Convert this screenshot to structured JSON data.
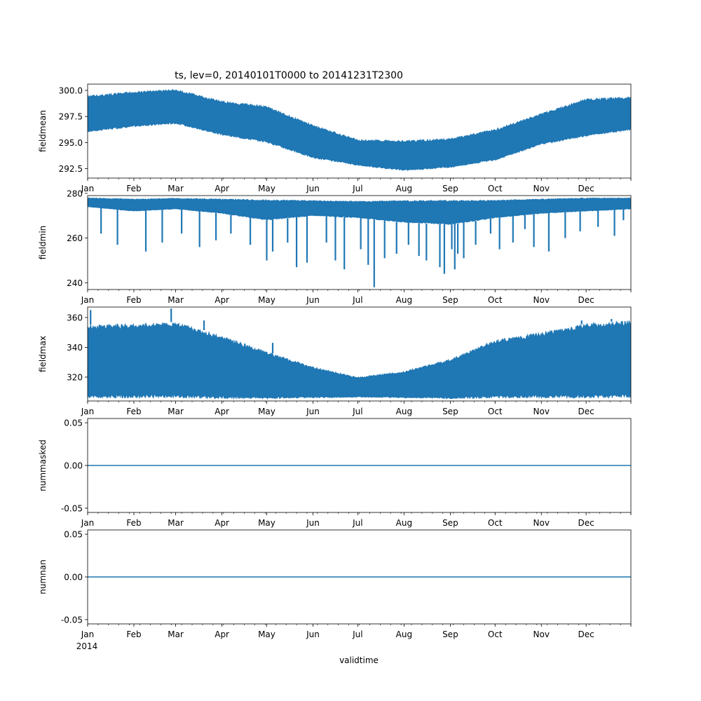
{
  "figure": {
    "title": "ts, lev=0, 20140101T0000 to 20141231T2300",
    "xlabel": "validtime",
    "year_label": "2014",
    "line_color": "#1f77b4"
  },
  "chart_data": [
    {
      "type": "area",
      "name": "fieldmean",
      "ylabel": "fieldmean",
      "x_ticks": [
        "Jan",
        "Feb",
        "Mar",
        "Apr",
        "May",
        "Jun",
        "Jul",
        "Aug",
        "Sep",
        "Oct",
        "Nov",
        "Dec"
      ],
      "yticks": [
        292.5,
        295.0,
        297.5,
        300.0
      ],
      "ytick_labels": [
        "292.5",
        "295.0",
        "297.5",
        "300.0"
      ],
      "ylim": [
        291.6,
        300.6
      ],
      "x_dates": [
        "2014-01-01",
        "2014-02-01",
        "2014-03-01",
        "2014-04-01",
        "2014-05-01",
        "2014-06-01",
        "2014-07-01",
        "2014-08-01",
        "2014-09-01",
        "2014-10-01",
        "2014-11-01",
        "2014-12-01",
        "2014-12-31"
      ],
      "upper": [
        299.5,
        299.9,
        300.1,
        299.0,
        298.5,
        296.7,
        295.3,
        295.2,
        295.4,
        296.3,
        297.8,
        299.2,
        299.4
      ],
      "lower": [
        296.0,
        296.5,
        296.8,
        295.7,
        295.0,
        293.5,
        292.8,
        292.3,
        292.6,
        293.3,
        294.8,
        295.6,
        296.2
      ],
      "xlim": [
        "2014-01-01",
        "2014-12-31"
      ],
      "grid": false
    },
    {
      "type": "line",
      "name": "fieldmin",
      "ylabel": "fieldmin",
      "x_ticks": [
        "Jan",
        "Feb",
        "Mar",
        "Apr",
        "May",
        "Jun",
        "Jul",
        "Aug",
        "Sep",
        "Oct",
        "Nov",
        "Dec"
      ],
      "yticks": [
        240,
        260,
        280
      ],
      "ytick_labels": [
        "240",
        "260",
        "280"
      ],
      "ylim": [
        237,
        279
      ],
      "x_dates": [
        "2014-01-01",
        "2014-02-01",
        "2014-03-01",
        "2014-04-01",
        "2014-05-01",
        "2014-06-01",
        "2014-07-01",
        "2014-08-01",
        "2014-09-01",
        "2014-10-01",
        "2014-11-01",
        "2014-12-01",
        "2014-12-31"
      ],
      "upper": [
        278.0,
        277.5,
        277.8,
        277.5,
        277.2,
        276.8,
        276.5,
        276.8,
        277.0,
        277.0,
        277.5,
        278.0,
        278.0
      ],
      "lower": [
        274.0,
        272.0,
        273.0,
        271.0,
        268.0,
        270.0,
        269.0,
        267.0,
        266.0,
        269.0,
        271.0,
        272.0,
        273.0
      ],
      "spikes": [
        [
          "2014-01-10",
          262
        ],
        [
          "2014-01-21",
          257
        ],
        [
          "2014-02-09",
          254
        ],
        [
          "2014-02-20",
          258
        ],
        [
          "2014-03-05",
          262
        ],
        [
          "2014-03-17",
          256
        ],
        [
          "2014-03-28",
          259
        ],
        [
          "2014-04-07",
          262
        ],
        [
          "2014-04-20",
          257
        ],
        [
          "2014-05-01",
          250
        ],
        [
          "2014-05-05",
          254
        ],
        [
          "2014-05-15",
          258
        ],
        [
          "2014-05-21",
          247
        ],
        [
          "2014-05-28",
          249
        ],
        [
          "2014-06-10",
          258
        ],
        [
          "2014-06-16",
          250
        ],
        [
          "2014-06-22",
          246
        ],
        [
          "2014-07-03",
          255
        ],
        [
          "2014-07-08",
          248
        ],
        [
          "2014-07-12",
          238
        ],
        [
          "2014-07-19",
          251
        ],
        [
          "2014-07-27",
          253
        ],
        [
          "2014-08-04",
          257
        ],
        [
          "2014-08-11",
          252
        ],
        [
          "2014-08-16",
          250
        ],
        [
          "2014-08-25",
          247
        ],
        [
          "2014-08-28",
          244
        ],
        [
          "2014-09-02",
          255
        ],
        [
          "2014-09-04",
          246
        ],
        [
          "2014-09-06",
          253
        ],
        [
          "2014-09-10",
          251
        ],
        [
          "2014-09-18",
          257
        ],
        [
          "2014-09-28",
          262
        ],
        [
          "2014-10-04",
          255
        ],
        [
          "2014-10-13",
          258
        ],
        [
          "2014-10-21",
          264
        ],
        [
          "2014-10-27",
          256
        ],
        [
          "2014-11-06",
          254
        ],
        [
          "2014-11-17",
          260
        ],
        [
          "2014-11-27",
          263
        ],
        [
          "2014-12-09",
          265
        ],
        [
          "2014-12-20",
          261
        ],
        [
          "2014-12-26",
          268
        ]
      ],
      "xlim": [
        "2014-01-01",
        "2014-12-31"
      ],
      "grid": false
    },
    {
      "type": "area",
      "name": "fieldmax",
      "ylabel": "fieldmax",
      "x_ticks": [
        "Jan",
        "Feb",
        "Mar",
        "Apr",
        "May",
        "Jun",
        "Jul",
        "Aug",
        "Sep",
        "Oct",
        "Nov",
        "Dec"
      ],
      "yticks": [
        320,
        340,
        360
      ],
      "ytick_labels": [
        "320",
        "340",
        "360"
      ],
      "ylim": [
        304,
        367
      ],
      "x_dates": [
        "2014-01-01",
        "2014-02-01",
        "2014-03-01",
        "2014-04-01",
        "2014-05-01",
        "2014-06-01",
        "2014-07-01",
        "2014-08-01",
        "2014-09-01",
        "2014-10-01",
        "2014-11-01",
        "2014-12-01",
        "2014-12-31"
      ],
      "upper": [
        355.0,
        356.0,
        357.0,
        348.0,
        337.0,
        327.0,
        320.0,
        324.0,
        332.0,
        345.0,
        350.0,
        356.0,
        358.0
      ],
      "lower": [
        306.0,
        306.0,
        306.0,
        305.5,
        305.5,
        306.0,
        306.5,
        306.0,
        305.5,
        306.0,
        306.0,
        306.0,
        306.0
      ],
      "spikes": [
        [
          "2014-01-03",
          365
        ],
        [
          "2014-02-26",
          366
        ],
        [
          "2014-03-20",
          358
        ],
        [
          "2014-05-05",
          343
        ],
        [
          "2014-11-28",
          358
        ],
        [
          "2014-12-18",
          359
        ]
      ],
      "xlim": [
        "2014-01-01",
        "2014-12-31"
      ],
      "grid": false
    },
    {
      "type": "line",
      "name": "nummasked",
      "ylabel": "nummasked",
      "x_ticks": [
        "Jan",
        "Feb",
        "Mar",
        "Apr",
        "May",
        "Jun",
        "Jul",
        "Aug",
        "Sep",
        "Oct",
        "Nov",
        "Dec"
      ],
      "yticks": [
        -0.05,
        0.0,
        0.05
      ],
      "ytick_labels": [
        "-0.05",
        "0.00",
        "0.05"
      ],
      "ylim": [
        -0.055,
        0.055
      ],
      "x": [
        "2014-01-01",
        "2014-12-31"
      ],
      "y": [
        0,
        0
      ],
      "xlim": [
        "2014-01-01",
        "2014-12-31"
      ],
      "grid": false
    },
    {
      "type": "line",
      "name": "numnan",
      "ylabel": "numnan",
      "x_ticks": [
        "Jan",
        "Feb",
        "Mar",
        "Apr",
        "May",
        "Jun",
        "Jul",
        "Aug",
        "Sep",
        "Oct",
        "Nov",
        "Dec"
      ],
      "yticks": [
        -0.05,
        0.0,
        0.05
      ],
      "ytick_labels": [
        "-0.05",
        "0.00",
        "0.05"
      ],
      "ylim": [
        -0.055,
        0.055
      ],
      "x": [
        "2014-01-01",
        "2014-12-31"
      ],
      "y": [
        0,
        0
      ],
      "xlim": [
        "2014-01-01",
        "2014-12-31"
      ],
      "grid": false
    }
  ]
}
